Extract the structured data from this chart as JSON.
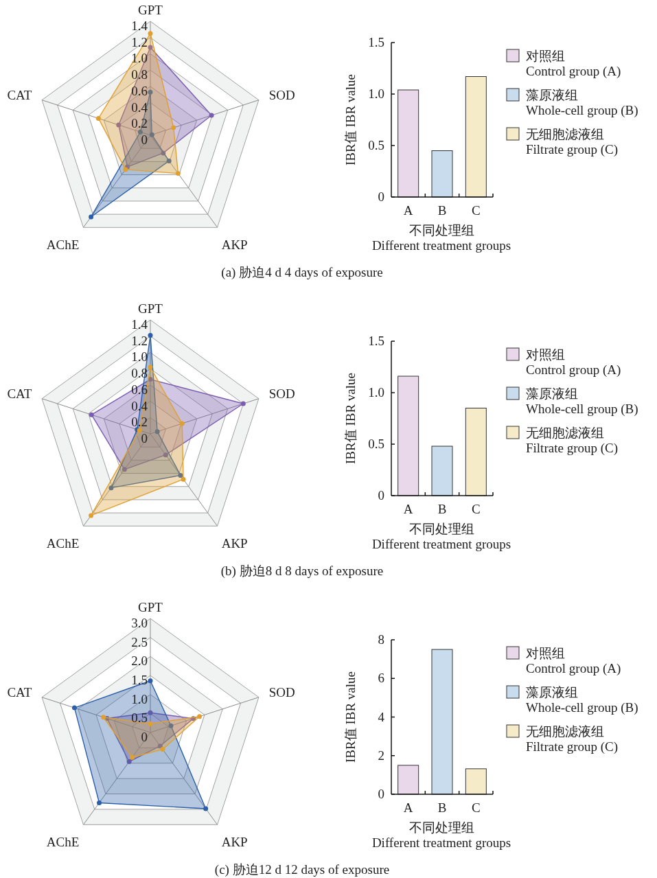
{
  "chart_data": [
    {
      "type": "radar",
      "categories": [
        "GPT",
        "SOD",
        "AKP",
        "AChE",
        "CAT"
      ],
      "ylim": [
        0,
        1.4
      ],
      "yticks": [
        0,
        0.2,
        0.4,
        0.6,
        0.8,
        {
          "value": 1,
          "label": "1.0"
        },
        1.2,
        1.4
      ],
      "marker": "circle",
      "annotations": [
        "(a) 胁迫4 d  4 days of exposure"
      ],
      "series": [
        {
          "color": "#7a5cb0",
          "values": [
            1.08,
            0.79,
            0.27,
            0.48,
            0.41
          ]
        },
        {
          "color": "#2b5fa8",
          "values": [
            0.53,
            0.02,
            0.39,
            1.24,
            0.13
          ]
        },
        {
          "color": "#e0a030",
          "values": [
            1.25,
            0.3,
            0.58,
            0.52,
            0.67
          ]
        }
      ]
    },
    {
      "type": "bar",
      "stacked": true,
      "categories": [
        "A",
        "B",
        "C"
      ],
      "ylim": [
        0,
        1.5
      ],
      "yticks": [
        0,
        0.5,
        {
          "value": 1,
          "label": "1.0"
        },
        1.5
      ],
      "xlabel": "不同处理组\nDifferent treatment groups",
      "ylabel": "IBR值  IBR value",
      "legend": "right",
      "series": [
        {
          "name": "对照组\nControl group (A)",
          "color": "#e8d8ea",
          "values": [
            1.04,
            null,
            null
          ]
        },
        {
          "name": "藻原液组\nWhole-cell group (B)",
          "color": "#c9dcee",
          "values": [
            null,
            0.45,
            null
          ]
        },
        {
          "name": "无细胞滤液组\nFiltrate group (C)",
          "color": "#f5ebc8",
          "values": [
            null,
            null,
            1.17
          ]
        }
      ]
    },
    {
      "type": "radar",
      "categories": [
        "GPT",
        "SOD",
        "AKP",
        "AChE",
        "CAT"
      ],
      "ylim": [
        0,
        1.4
      ],
      "yticks": [
        0,
        0.2,
        0.4,
        0.6,
        0.8,
        {
          "value": 1,
          "label": "1.0"
        },
        1.2,
        1.4
      ],
      "marker": "circle",
      "annotations": [
        "(b) 胁迫8 d  8 days of exposure"
      ],
      "series": [
        {
          "color": "#7a5cb0",
          "values": [
            0.67,
            1.2,
            0.32,
            0.54,
            0.76
          ]
        },
        {
          "color": "#2b5fa8",
          "values": [
            1.21,
            0.09,
            0.63,
            0.82,
            0.17
          ]
        },
        {
          "color": "#e0a030",
          "values": [
            0.82,
            0.41,
            0.69,
            1.24,
            0.14
          ]
        }
      ]
    },
    {
      "type": "bar",
      "stacked": true,
      "categories": [
        "A",
        "B",
        "C"
      ],
      "ylim": [
        0,
        1.5
      ],
      "yticks": [
        0,
        0.5,
        {
          "value": 1,
          "label": "1.0"
        },
        1.5
      ],
      "xlabel": "不同处理组\nDifferent treatment groups",
      "ylabel": "IBR值 IBR value",
      "legend": "right",
      "series": [
        {
          "name": "对照组\nControl group (A)",
          "color": "#e8d8ea",
          "values": [
            1.16,
            null,
            null
          ]
        },
        {
          "name": "藻原液组\nWhole-cell group (B)",
          "color": "#c9dcee",
          "values": [
            null,
            0.48,
            null
          ]
        },
        {
          "name": "无细胞滤液组\nFiltrate group (C)",
          "color": "#f5ebc8",
          "values": [
            null,
            null,
            0.85
          ]
        }
      ]
    },
    {
      "type": "radar",
      "categories": [
        "GPT",
        "SOD",
        "AKP",
        "AChE",
        "CAT"
      ],
      "ylim": [
        0,
        3
      ],
      "yticks": [
        0,
        0.5,
        {
          "value": 1,
          "label": "1.0"
        },
        1.5,
        {
          "value": 2,
          "label": "2.0"
        },
        2.5,
        {
          "value": 3,
          "label": "3.0"
        }
      ],
      "marker": "circle",
      "annotations": [
        "(c) 胁迫12 d  12 days of exposure"
      ],
      "series": [
        {
          "color": "#7a5cb0",
          "values": [
            0.52,
            1.19,
            0.44,
            0.95,
            1.2
          ]
        },
        {
          "color": "#2b5fa8",
          "values": [
            1.36,
            0.57,
            2.48,
            2.29,
            2.1
          ]
        },
        {
          "color": "#e0a030",
          "values": [
            0.23,
            1.36,
            0.55,
            0.81,
            1.3
          ]
        }
      ]
    },
    {
      "type": "bar",
      "stacked": true,
      "categories": [
        "A",
        "B",
        "C"
      ],
      "ylim": [
        0,
        8
      ],
      "yticks": [
        0,
        2,
        4,
        6,
        8
      ],
      "xlabel": "不同处理组\nDifferent treatment groups",
      "ylabel": "IBR值 IBR value",
      "legend": "right",
      "series": [
        {
          "name": "对照组\nControl group (A)",
          "color": "#e8d8ea",
          "values": [
            1.5,
            null,
            null
          ]
        },
        {
          "name": "藻原液组\nWhole-cell group (B)",
          "color": "#c9dcee",
          "values": [
            null,
            7.5,
            null
          ]
        },
        {
          "name": "无细胞滤液组\nFiltrate group (C)",
          "color": "#f5ebc8",
          "values": [
            null,
            null,
            1.32
          ]
        }
      ]
    }
  ]
}
